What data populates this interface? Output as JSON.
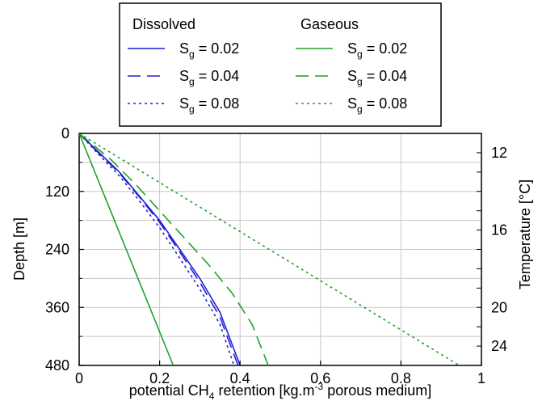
{
  "chart_data": {
    "type": "line",
    "xlabel": {
      "pre": "potential CH",
      "sub": "4",
      "mid": " retention [kg.m",
      "sup": "-3",
      "post": " porous medium]"
    },
    "ylabel": "Depth [m]",
    "y2label": "Temperature [°C]",
    "xlim": [
      0,
      1
    ],
    "ylim": [
      480,
      0
    ],
    "y2lim_labels": [
      "12",
      "16",
      "20",
      "24"
    ],
    "x_ticks": [
      "0",
      "0.2",
      "0.4",
      "0.6",
      "0.8",
      "1"
    ],
    "y_ticks": [
      "0",
      "120",
      "240",
      "360",
      "480"
    ],
    "y2_ticks": [
      {
        "label": "12",
        "depth": 40
      },
      {
        "label": "16",
        "depth": 200
      },
      {
        "label": "20",
        "depth": 360
      },
      {
        "label": "24",
        "depth": 440
      }
    ],
    "grid": true,
    "legend": {
      "placement": "top-center",
      "groups": [
        {
          "title": "Dissolved",
          "color": "#1f1fd6"
        },
        {
          "title": "Gaseous",
          "color": "#22a02a"
        }
      ],
      "entries": [
        {
          "group": 0,
          "style": "solid",
          "label": "S",
          "sub": "g",
          "value": " = 0.02"
        },
        {
          "group": 0,
          "style": "dashed",
          "label": "S",
          "sub": "g",
          "value": " = 0.04"
        },
        {
          "group": 0,
          "style": "dotted",
          "label": "S",
          "sub": "g",
          "value": " = 0.08"
        },
        {
          "group": 1,
          "style": "solid",
          "label": "S",
          "sub": "g",
          "value": " = 0.02"
        },
        {
          "group": 1,
          "style": "dashed",
          "label": "S",
          "sub": "g",
          "value": " = 0.04"
        },
        {
          "group": 1,
          "style": "dotted",
          "label": "S",
          "sub": "g",
          "value": " = 0.08"
        }
      ]
    },
    "series": [
      {
        "group": "Dissolved",
        "style": "solid",
        "color": "#1f1fd6",
        "points": [
          [
            0,
            0
          ],
          [
            0.05,
            40
          ],
          [
            0.1,
            80
          ],
          [
            0.15,
            130
          ],
          [
            0.2,
            180
          ],
          [
            0.25,
            240
          ],
          [
            0.3,
            300
          ],
          [
            0.35,
            370
          ],
          [
            0.4,
            480
          ]
        ]
      },
      {
        "group": "Dissolved",
        "style": "dashed",
        "color": "#1f1fd6",
        "points": [
          [
            0,
            0
          ],
          [
            0.05,
            42
          ],
          [
            0.1,
            82
          ],
          [
            0.15,
            132
          ],
          [
            0.2,
            184
          ],
          [
            0.25,
            245
          ],
          [
            0.3,
            308
          ],
          [
            0.35,
            380
          ],
          [
            0.395,
            480
          ]
        ]
      },
      {
        "group": "Dissolved",
        "style": "dotted",
        "color": "#1f1fd6",
        "points": [
          [
            0,
            0
          ],
          [
            0.05,
            45
          ],
          [
            0.1,
            88
          ],
          [
            0.15,
            140
          ],
          [
            0.2,
            195
          ],
          [
            0.25,
            258
          ],
          [
            0.3,
            322
          ],
          [
            0.35,
            395
          ],
          [
            0.385,
            480
          ]
        ]
      },
      {
        "group": "Gaseous",
        "style": "solid",
        "color": "#22a02a",
        "points": [
          [
            0,
            0
          ],
          [
            0.234,
            480
          ]
        ]
      },
      {
        "group": "Gaseous",
        "style": "dashed",
        "color": "#22a02a",
        "points": [
          [
            0,
            0
          ],
          [
            0.08,
            55
          ],
          [
            0.14,
            105
          ],
          [
            0.2,
            160
          ],
          [
            0.26,
            215
          ],
          [
            0.32,
            270
          ],
          [
            0.38,
            330
          ],
          [
            0.43,
            395
          ],
          [
            0.47,
            480
          ]
        ]
      },
      {
        "group": "Gaseous",
        "style": "dotted",
        "color": "#22a02a",
        "points": [
          [
            0,
            0
          ],
          [
            0.945,
            480
          ]
        ]
      }
    ]
  }
}
